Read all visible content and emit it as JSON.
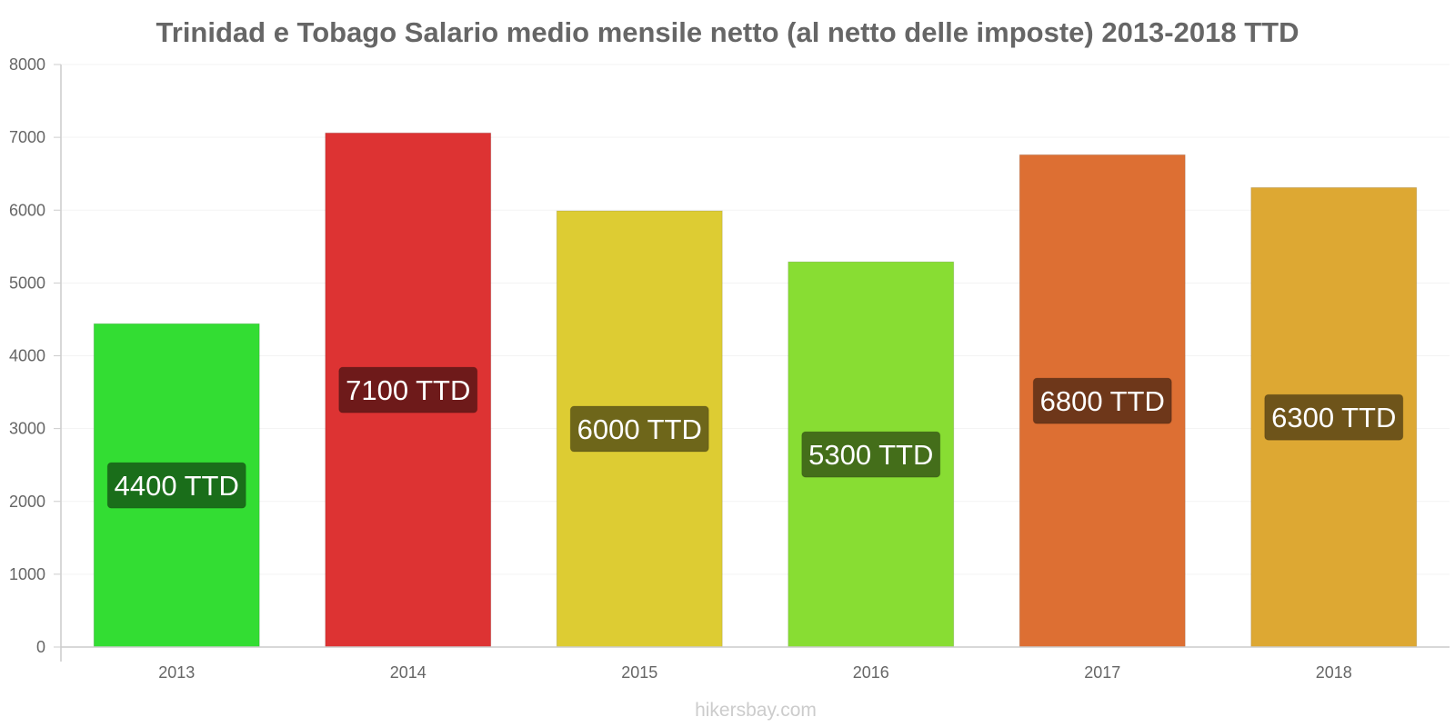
{
  "chart_data": {
    "type": "bar",
    "title": "Trinidad e Tobago Salario medio mensile netto (al netto delle imposte) 2013-2018 TTD",
    "xlabel": "",
    "ylabel": "",
    "ylim": [
      0,
      8000
    ],
    "y_ticks": [
      0,
      1000,
      2000,
      3000,
      4000,
      5000,
      6000,
      7000,
      8000
    ],
    "grid": true,
    "legend": "none",
    "categories": [
      "2013",
      "2014",
      "2015",
      "2016",
      "2017",
      "2018"
    ],
    "values": [
      4440,
      7060,
      5990,
      5290,
      6760,
      6310
    ],
    "data_labels": [
      "4400 TTD",
      "7100 TTD",
      "6000 TTD",
      "5300 TTD",
      "6800 TTD",
      "6300 TTD"
    ],
    "bar_colors": [
      "#33dd33",
      "#dd3333",
      "#ddcc33",
      "#88dd33",
      "#dd6f33",
      "#dda833"
    ],
    "label_colors": [
      "#1a6e1a",
      "#6e1a1a",
      "#6e661a",
      "#446e1a",
      "#6e371a",
      "#6e541a"
    ],
    "watermark": "hikersbay.com"
  }
}
